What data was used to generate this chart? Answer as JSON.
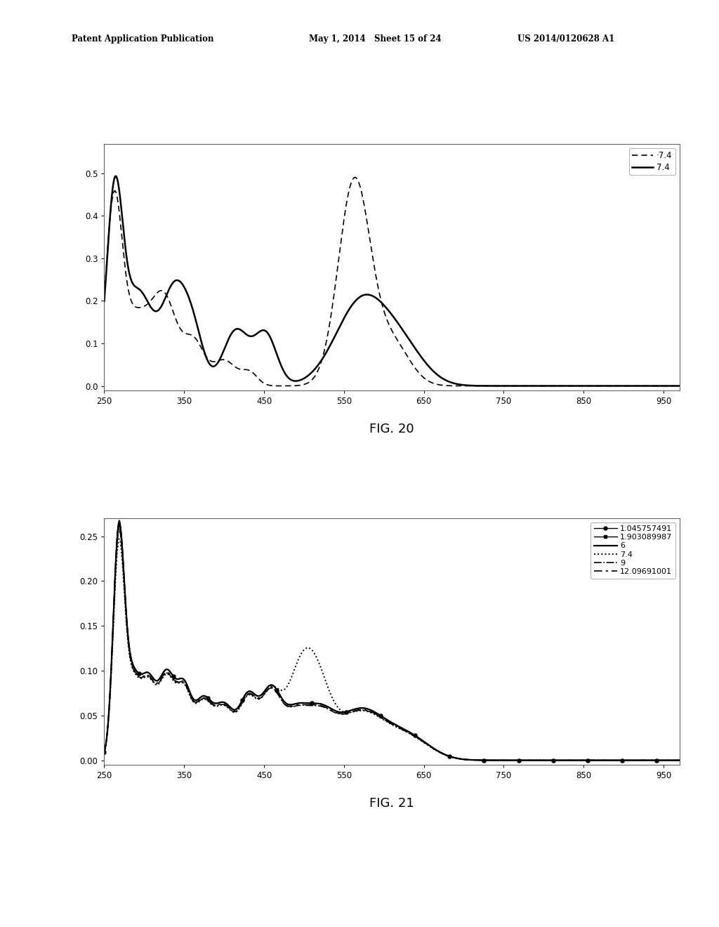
{
  "fig20": {
    "title": "FIG. 20",
    "xlim": [
      250,
      970
    ],
    "ylim": [
      -0.01,
      0.57
    ],
    "yticks": [
      0.0,
      0.1,
      0.2,
      0.3,
      0.4,
      0.5
    ],
    "xticks": [
      250,
      350,
      450,
      550,
      650,
      750,
      850,
      950
    ],
    "legend": [
      "·7.4",
      "7.4"
    ]
  },
  "fig21": {
    "title": "FIG. 21",
    "xlim": [
      250,
      970
    ],
    "ylim": [
      -0.005,
      0.27
    ],
    "yticks": [
      0.0,
      0.05,
      0.1,
      0.15,
      0.2,
      0.25
    ],
    "xticks": [
      250,
      350,
      450,
      550,
      650,
      750,
      850,
      950
    ],
    "legend": [
      "1.045757491",
      "1.903089987",
      "6",
      "7.4",
      "9",
      "12.09691001"
    ]
  },
  "background": "#ffffff",
  "header_left": "Patent Application Publication",
  "header_mid": "May 1, 2014   Sheet 15 of 24",
  "header_right": "US 2014/0120628 A1",
  "line_color": "#000000"
}
